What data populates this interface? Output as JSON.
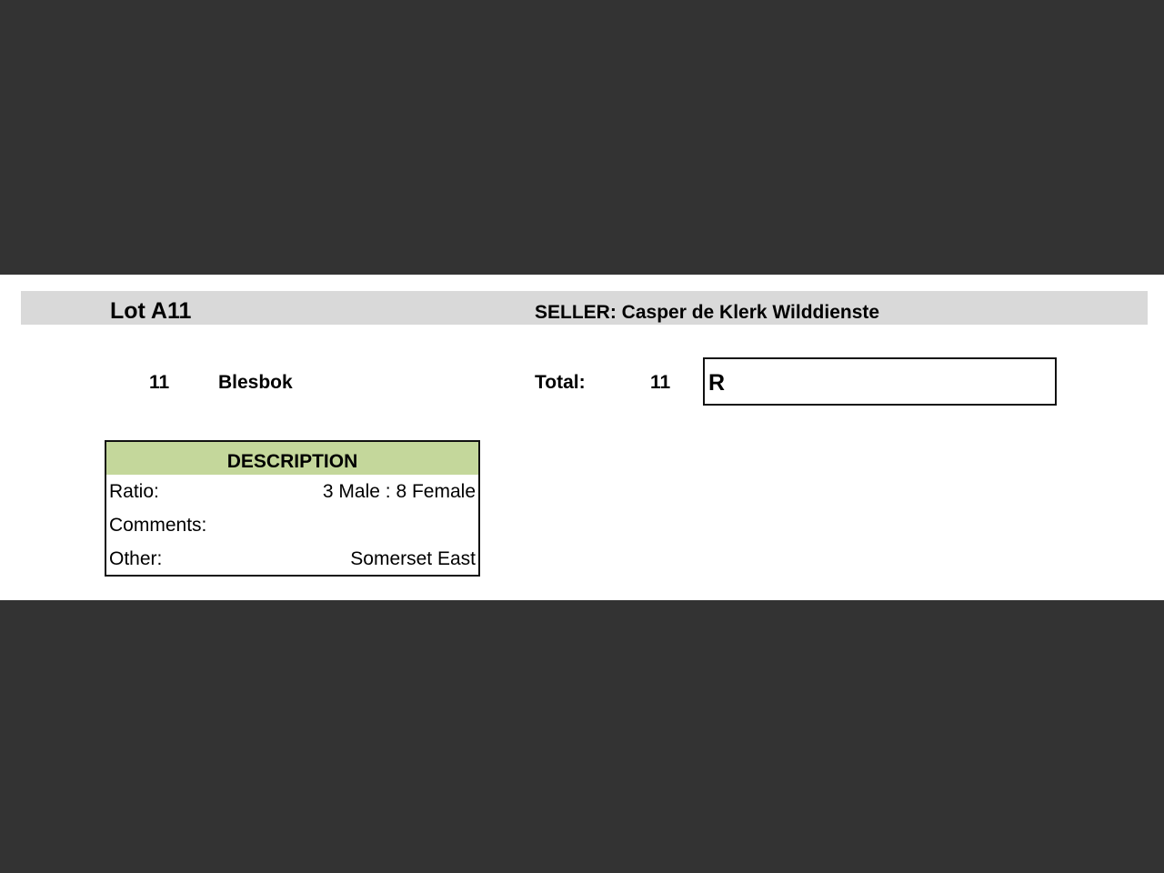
{
  "lot": {
    "title": "Lot A11",
    "seller": "SELLER: Casper de Klerk Wilddienste"
  },
  "item": {
    "quantity": "11",
    "species": "Blesbok"
  },
  "total": {
    "label": "Total:",
    "value": "11",
    "currency": "R"
  },
  "description": {
    "heading": "DESCRIPTION",
    "rows": [
      {
        "label": "Ratio:",
        "value": "3 Male : 8 Female"
      },
      {
        "label": "Comments:",
        "value": ""
      },
      {
        "label": "Other:",
        "value": "Somerset East"
      }
    ]
  },
  "colors": {
    "background": "#333333",
    "header_band": "#d9d9d9",
    "description_header": "#c4d79b"
  }
}
